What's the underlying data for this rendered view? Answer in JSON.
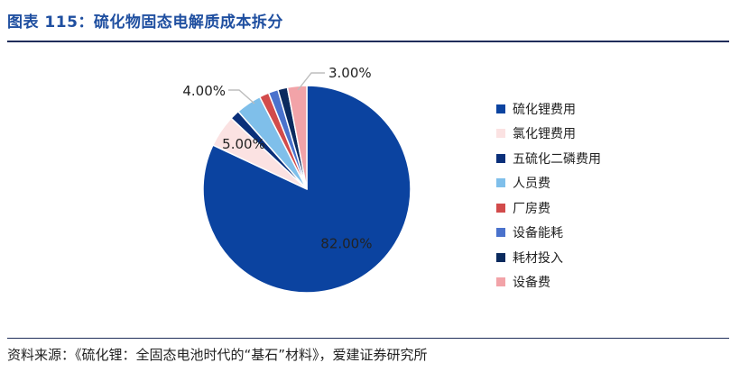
{
  "header": {
    "title": "图表 115：硫化物固态电解质成本拆分"
  },
  "footer": {
    "source": "资料来源：《硫化锂：全固态电池时代的“基石”材料》，爱建证券研究所"
  },
  "chart_data": {
    "type": "pie",
    "title": "",
    "legend_position": "right",
    "slices": [
      {
        "name": "硫化锂费用",
        "value": 82.0,
        "label": "82.00%",
        "color": "#0b43a0"
      },
      {
        "name": "氯化锂费用",
        "value": 5.0,
        "label": "5.00%",
        "color": "#fbe2e2"
      },
      {
        "name": "五硫化二磷费用",
        "value": 1.5,
        "label": "",
        "color": "#0a2f7a"
      },
      {
        "name": "人员费",
        "value": 4.0,
        "label": "4.00%",
        "color": "#7fbfea"
      },
      {
        "name": "厂房费",
        "value": 1.5,
        "label": "",
        "color": "#d24b4b"
      },
      {
        "name": "设备能耗",
        "value": 1.5,
        "label": "",
        "color": "#4a72cc"
      },
      {
        "name": "耗材投入",
        "value": 1.5,
        "label": "",
        "color": "#0a2a5e"
      },
      {
        "name": "设备费",
        "value": 3.0,
        "label": "3.00%",
        "color": "#f2a3a8"
      }
    ]
  }
}
